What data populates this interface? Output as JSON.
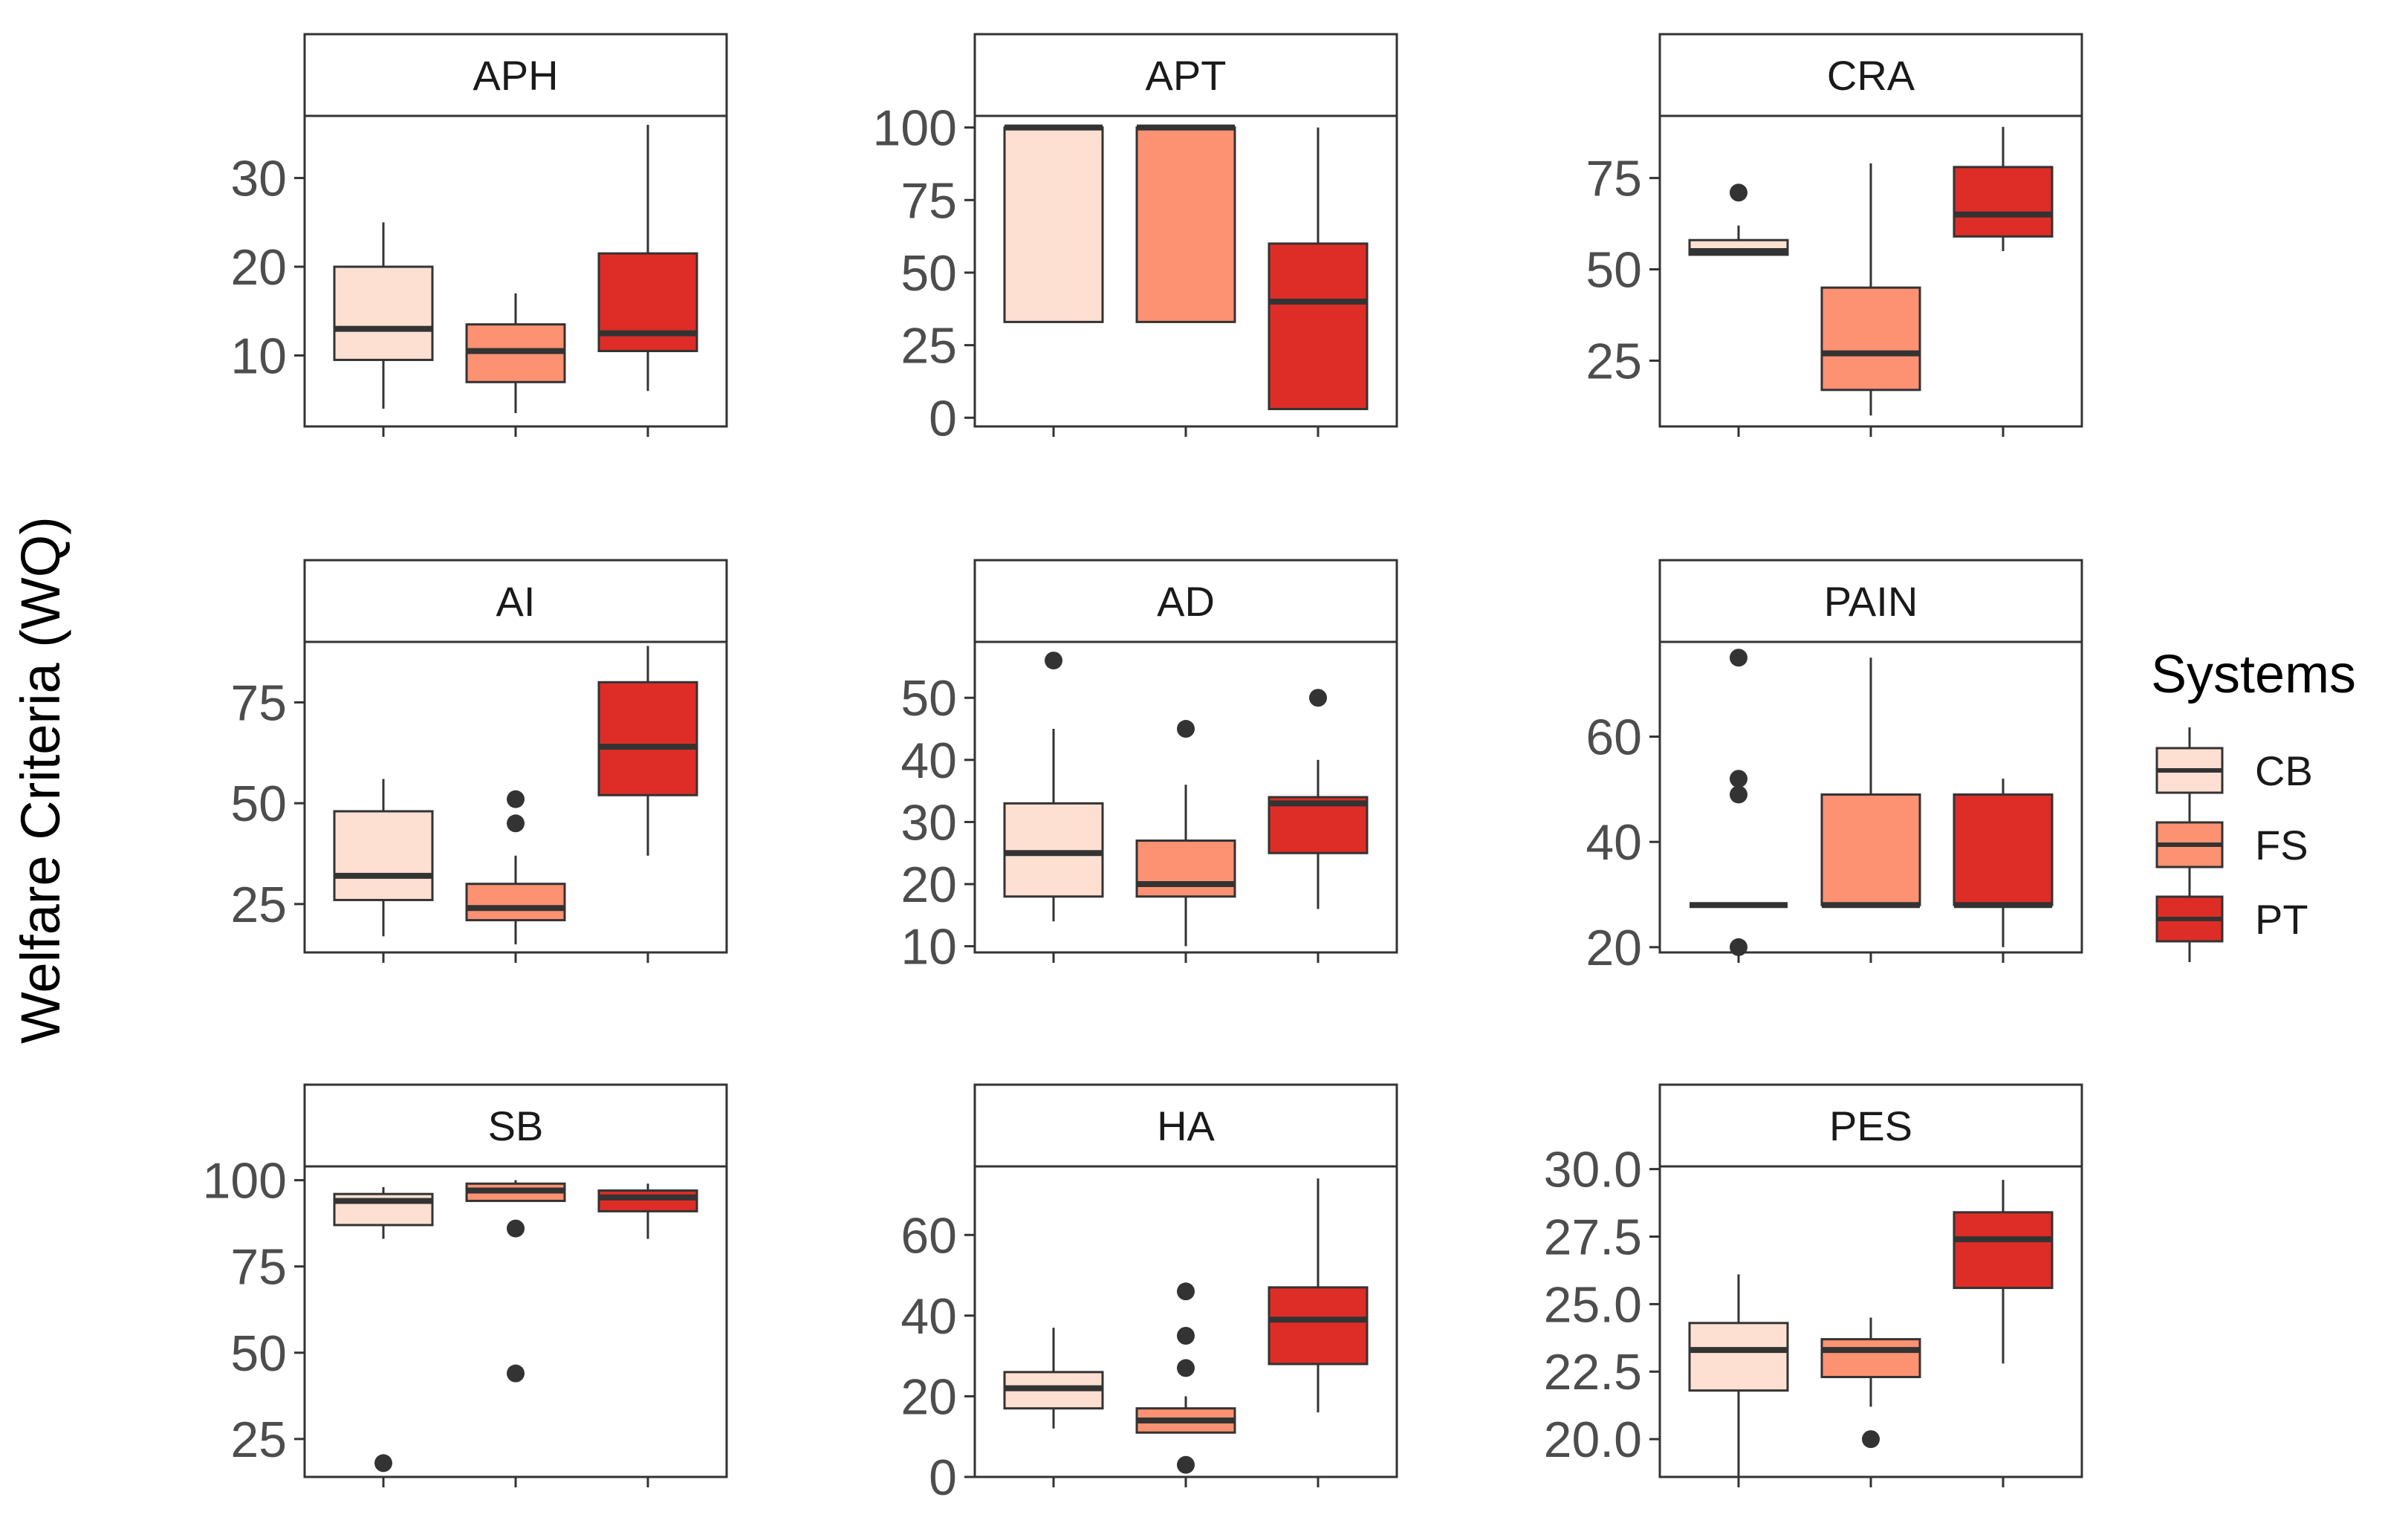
{
  "chart_data": {
    "type": "boxplot",
    "ylabel": "Welfare Criteria (WQ)",
    "legend": {
      "title": "Systems",
      "placement": "right",
      "items": [
        {
          "name": "CB",
          "color": "#fee0d2"
        },
        {
          "name": "FS",
          "color": "#fc9272"
        },
        {
          "name": "PT",
          "color": "#de2d26"
        }
      ]
    },
    "categories": [
      "CB",
      "FS",
      "PT"
    ],
    "panels": [
      {
        "name": "APH",
        "ylim": [
          2,
          37
        ],
        "yticks": [
          10,
          20,
          30
        ],
        "boxes": [
          {
            "group": "CB",
            "min": 4,
            "q1": 9.5,
            "median": 13,
            "q3": 20,
            "max": 25,
            "outliers": []
          },
          {
            "group": "FS",
            "min": 3.5,
            "q1": 7,
            "median": 10.5,
            "q3": 13.5,
            "max": 17,
            "outliers": []
          },
          {
            "group": "PT",
            "min": 6,
            "q1": 10.5,
            "median": 12.5,
            "q3": 21.5,
            "max": 36,
            "outliers": []
          }
        ]
      },
      {
        "name": "APT",
        "ylim": [
          -3,
          104
        ],
        "yticks": [
          0,
          25,
          50,
          75,
          100
        ],
        "boxes": [
          {
            "group": "CB",
            "min": 33,
            "q1": 33,
            "median": 100,
            "q3": 100,
            "max": 100,
            "outliers": []
          },
          {
            "group": "FS",
            "min": 33,
            "q1": 33,
            "median": 100,
            "q3": 100,
            "max": 100,
            "outliers": []
          },
          {
            "group": "PT",
            "min": 3,
            "q1": 3,
            "median": 40,
            "q3": 60,
            "max": 100,
            "outliers": []
          }
        ]
      },
      {
        "name": "CRA",
        "ylim": [
          7,
          92
        ],
        "yticks": [
          25,
          50,
          75
        ],
        "boxes": [
          {
            "group": "CB",
            "min": 54,
            "q1": 54,
            "median": 55,
            "q3": 58,
            "max": 62,
            "outliers": [
              71
            ]
          },
          {
            "group": "FS",
            "min": 10,
            "q1": 17,
            "median": 27,
            "q3": 45,
            "max": 79,
            "outliers": []
          },
          {
            "group": "PT",
            "min": 55,
            "q1": 59,
            "median": 65,
            "q3": 78,
            "max": 89,
            "outliers": []
          }
        ]
      },
      {
        "name": "AI",
        "ylim": [
          13,
          90
        ],
        "yticks": [
          25,
          50,
          75
        ],
        "boxes": [
          {
            "group": "CB",
            "min": 17,
            "q1": 26,
            "median": 32,
            "q3": 48,
            "max": 56,
            "outliers": []
          },
          {
            "group": "FS",
            "min": 15,
            "q1": 21,
            "median": 24,
            "q3": 30,
            "max": 37,
            "outliers": [
              45,
              51
            ]
          },
          {
            "group": "PT",
            "min": 37,
            "q1": 52,
            "median": 64,
            "q3": 80,
            "max": 89,
            "outliers": []
          }
        ]
      },
      {
        "name": "AD",
        "ylim": [
          9,
          59
        ],
        "yticks": [
          10,
          20,
          30,
          40,
          50
        ],
        "boxes": [
          {
            "group": "CB",
            "min": 14,
            "q1": 18,
            "median": 25,
            "q3": 33,
            "max": 45,
            "outliers": [
              56
            ]
          },
          {
            "group": "FS",
            "min": 10,
            "q1": 18,
            "median": 20,
            "q3": 27,
            "max": 36,
            "outliers": [
              45
            ]
          },
          {
            "group": "PT",
            "min": 16,
            "q1": 25,
            "median": 33,
            "q3": 34,
            "max": 40,
            "outliers": [
              50
            ]
          }
        ]
      },
      {
        "name": "PAIN",
        "ylim": [
          19,
          78
        ],
        "yticks": [
          20,
          40,
          60
        ],
        "boxes": [
          {
            "group": "CB",
            "min": 28,
            "q1": 28,
            "median": 28,
            "q3": 28,
            "max": 28,
            "outliers": [
              20,
              49,
              52,
              75
            ]
          },
          {
            "group": "FS",
            "min": 28,
            "q1": 28,
            "median": 28,
            "q3": 49,
            "max": 75,
            "outliers": []
          },
          {
            "group": "PT",
            "min": 20,
            "q1": 28,
            "median": 28,
            "q3": 49,
            "max": 52,
            "outliers": []
          }
        ]
      },
      {
        "name": "SB",
        "ylim": [
          14,
          104
        ],
        "yticks": [
          25,
          50,
          75,
          100
        ],
        "boxes": [
          {
            "group": "CB",
            "min": 83,
            "q1": 87,
            "median": 94,
            "q3": 96,
            "max": 98,
            "outliers": [
              18
            ]
          },
          {
            "group": "FS",
            "min": 94,
            "q1": 94,
            "median": 97,
            "q3": 99,
            "max": 100,
            "outliers": [
              44,
              86
            ]
          },
          {
            "group": "PT",
            "min": 83,
            "q1": 91,
            "median": 95,
            "q3": 97,
            "max": 99,
            "outliers": []
          }
        ]
      },
      {
        "name": "HA",
        "ylim": [
          0,
          77
        ],
        "yticks": [
          0,
          20,
          40,
          60
        ],
        "boxes": [
          {
            "group": "CB",
            "min": 12,
            "q1": 17,
            "median": 22,
            "q3": 26,
            "max": 37,
            "outliers": []
          },
          {
            "group": "FS",
            "min": 11,
            "q1": 11,
            "median": 14,
            "q3": 17,
            "max": 20,
            "outliers": [
              3,
              27,
              35,
              46
            ]
          },
          {
            "group": "PT",
            "min": 16,
            "q1": 28,
            "median": 39,
            "q3": 47,
            "max": 74,
            "outliers": []
          }
        ]
      },
      {
        "name": "PES",
        "ylim": [
          18.6,
          30.1
        ],
        "yticks": [
          20.0,
          22.5,
          25.0,
          27.5,
          30.0
        ],
        "ytick_labels": [
          "20.0",
          "22.5",
          "25.0",
          "27.5",
          "30.0"
        ],
        "boxes": [
          {
            "group": "CB",
            "min": 18.5,
            "q1": 21.8,
            "median": 23.3,
            "q3": 24.3,
            "max": 26.1,
            "outliers": []
          },
          {
            "group": "FS",
            "min": 21.2,
            "q1": 22.3,
            "median": 23.3,
            "q3": 23.7,
            "max": 24.5,
            "outliers": [
              20
            ]
          },
          {
            "group": "PT",
            "min": 22.8,
            "q1": 25.6,
            "median": 27.4,
            "q3": 28.4,
            "max": 29.6,
            "outliers": []
          }
        ]
      }
    ]
  }
}
